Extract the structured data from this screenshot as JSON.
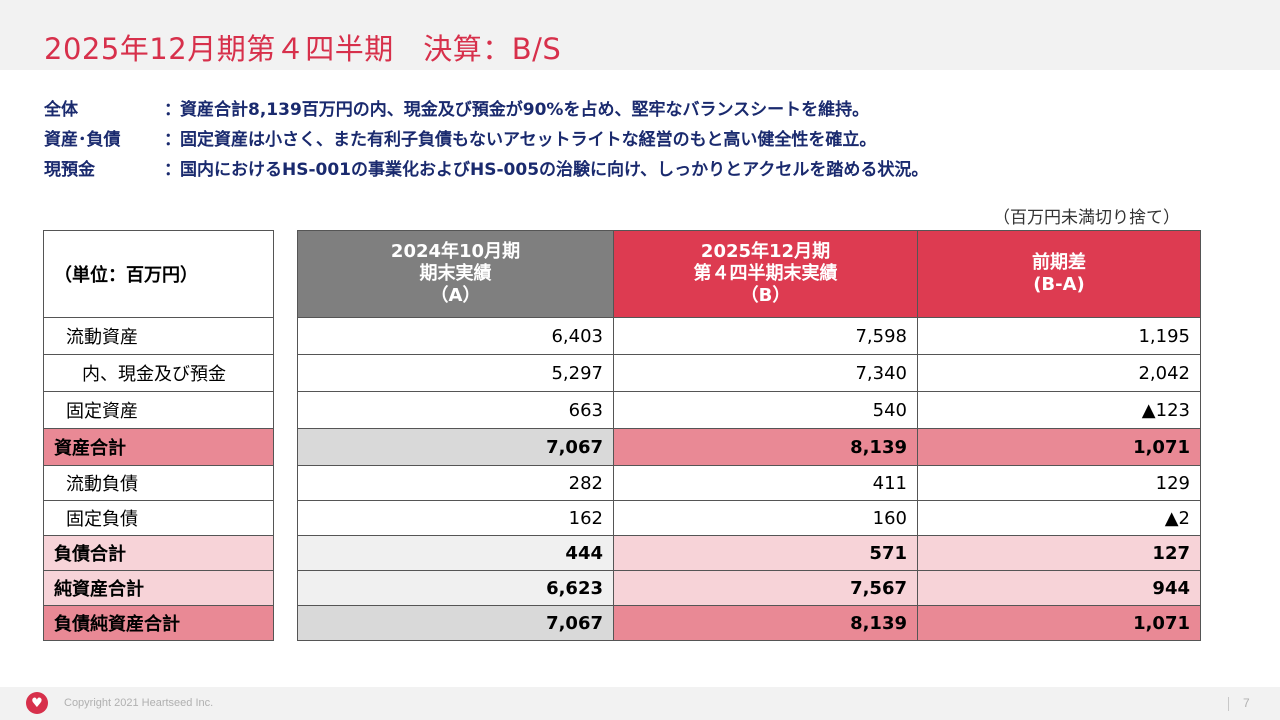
{
  "title": "2025年12月期第４四半期　決算：B/S",
  "summary": [
    {
      "key": "全体",
      "text": "資産合計8,139百万円の内、現金及び預金が90%を占め、堅牢なバランスシートを維持。"
    },
    {
      "key": "資産･負債",
      "text": "固定資産は小さく、また有利子負債もないアセットライトな経営のもと高い健全性を確立。"
    },
    {
      "key": "現預金",
      "text": "国内におけるHS-001の事業化およびHS-005の治験に向け、しっかりとアクセルを踏める状況。"
    }
  ],
  "colon": "：",
  "unit_note": "（百万円未満切り捨て）",
  "table": {
    "corner_label": "（単位：百万円）",
    "headers": [
      {
        "l1": "2024年10月期",
        "l2": "期末実績",
        "l3": "（A）"
      },
      {
        "l1": "2025年12月期",
        "l2": "第４四半期末実績",
        "l3": "（B）"
      },
      {
        "l1": "前期差",
        "l2": "(B-A)",
        "l3": ""
      }
    ],
    "rows": [
      {
        "label": "流動資産",
        "a": "6,403",
        "b": "7,598",
        "c": "1,195"
      },
      {
        "label": "内、現金及び預金",
        "a": "5,297",
        "b": "7,340",
        "c": "2,042"
      },
      {
        "label": "固定資産",
        "a": "663",
        "b": "540",
        "c": "▲123"
      },
      {
        "label": "資産合計",
        "a": "7,067",
        "b": "8,139",
        "c": "1,071"
      },
      {
        "label": "流動負債",
        "a": "282",
        "b": "411",
        "c": "129"
      },
      {
        "label": "固定負債",
        "a": "162",
        "b": "160",
        "c": "▲2"
      },
      {
        "label": "負債合計",
        "a": "444",
        "b": "571",
        "c": "127"
      },
      {
        "label": "純資産合計",
        "a": "6,623",
        "b": "7,567",
        "c": "944"
      },
      {
        "label": "負債純資産合計",
        "a": "7,067",
        "b": "8,139",
        "c": "1,071"
      }
    ]
  },
  "footer": {
    "copyright": "Copyright 2021 Heartseed Inc.",
    "page_number": "7",
    "logo_icon": "heart-logo-icon"
  },
  "colors": {
    "brand_red": "#d7304b",
    "header_gray": "#7f7f7f",
    "header_red": "#dd3b51",
    "total_pink": "#e98995",
    "subtotal_pink": "#f7d3d8",
    "summary_navy": "#1a2a6e"
  }
}
